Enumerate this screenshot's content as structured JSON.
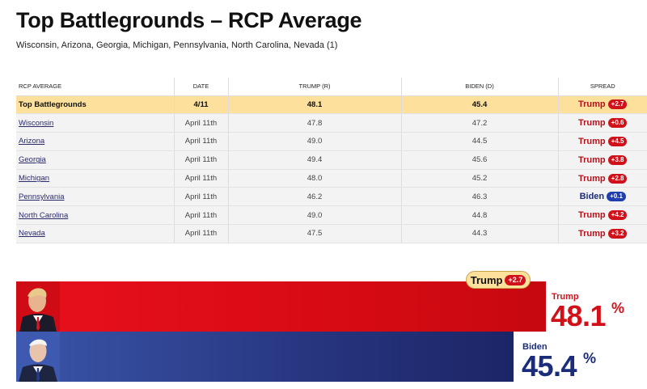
{
  "header": {
    "title": "Top Battlegrounds – RCP Average",
    "subtitle": "Wisconsin, Arizona, Georgia, Michigan, Pennsylvania, North Carolina, Nevada (1)"
  },
  "table": {
    "columns": [
      "RCP AVERAGE",
      "DATE",
      "TRUMP (R)",
      "BIDEN (D)",
      "SPREAD"
    ],
    "average": {
      "race": "Top Battlegrounds",
      "date": "4/11",
      "trump": "48.1",
      "biden": "45.4",
      "spread_cand": "Trump",
      "spread_val": "+2.7"
    },
    "rows": [
      {
        "race": "Wisconsin",
        "date": "April 11th",
        "trump": "47.8",
        "biden": "47.2",
        "spread_cand": "Trump",
        "spread_val": "+0.6"
      },
      {
        "race": "Arizona",
        "date": "April 11th",
        "trump": "49.0",
        "biden": "44.5",
        "spread_cand": "Trump",
        "spread_val": "+4.5"
      },
      {
        "race": "Georgia",
        "date": "April 11th",
        "trump": "49.4",
        "biden": "45.6",
        "spread_cand": "Trump",
        "spread_val": "+3.8"
      },
      {
        "race": "Michigan",
        "date": "April 11th",
        "trump": "48.0",
        "biden": "45.2",
        "spread_cand": "Trump",
        "spread_val": "+2.8"
      },
      {
        "race": "Pennsylvania",
        "date": "April 11th",
        "trump": "46.2",
        "biden": "46.3",
        "spread_cand": "Biden",
        "spread_val": "+0.1"
      },
      {
        "race": "North Carolina",
        "date": "April 11th",
        "trump": "49.0",
        "biden": "44.8",
        "spread_cand": "Trump",
        "spread_val": "+4.2"
      },
      {
        "race": "Nevada",
        "date": "April 11th",
        "trump": "47.5",
        "biden": "44.3",
        "spread_cand": "Trump",
        "spread_val": "+3.2"
      }
    ]
  },
  "summary": {
    "leader_badge": {
      "cand": "Trump",
      "val": "+2.7"
    },
    "trump": {
      "name": "Trump",
      "value": "48.1",
      "pct": "%"
    },
    "biden": {
      "name": "Biden",
      "value": "45.4",
      "pct": "%"
    }
  },
  "colors": {
    "trump": "#d0111a",
    "biden": "#1b2d7a",
    "highlight": "#fde09b"
  },
  "icons": {
    "trump_avatar": "trump-avatar-icon",
    "biden_avatar": "biden-avatar-icon"
  }
}
